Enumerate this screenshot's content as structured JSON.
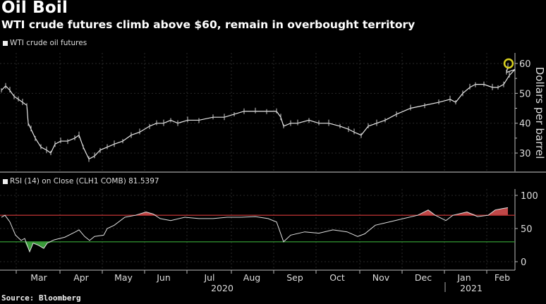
{
  "title": "Oil Boil",
  "subtitle": "WTI crude futures climb above $60, remain in overbought territory",
  "source": "Source: Bloomberg",
  "chart_data": [
    {
      "type": "line",
      "legend": "WTI crude oil futures",
      "ylabel": "Dollars per barrel",
      "ylim": [
        24,
        64
      ],
      "yticks": [
        30,
        40,
        50,
        60
      ],
      "x_unit": "days since 2020-02-18",
      "highlight_last_point": true,
      "colors": {
        "line": "#e8e8e8",
        "highlight": "#d8d020"
      },
      "points": [
        [
          0,
          51
        ],
        [
          3,
          52.5
        ],
        [
          6,
          51
        ],
        [
          9,
          49
        ],
        [
          12,
          48
        ],
        [
          15,
          47
        ],
        [
          18,
          46
        ],
        [
          19,
          40
        ],
        [
          21,
          38
        ],
        [
          24,
          35
        ],
        [
          28,
          32
        ],
        [
          32,
          31
        ],
        [
          35,
          30
        ],
        [
          38,
          33
        ],
        [
          42,
          34
        ],
        [
          47,
          34
        ],
        [
          52,
          35
        ],
        [
          55,
          36
        ],
        [
          58,
          32
        ],
        [
          62,
          28
        ],
        [
          66,
          29
        ],
        [
          70,
          31
        ],
        [
          75,
          32
        ],
        [
          80,
          33
        ],
        [
          86,
          34
        ],
        [
          92,
          36
        ],
        [
          98,
          37
        ],
        [
          105,
          39
        ],
        [
          110,
          40
        ],
        [
          115,
          40
        ],
        [
          120,
          41
        ],
        [
          125,
          40
        ],
        [
          132,
          41
        ],
        [
          140,
          41
        ],
        [
          150,
          42
        ],
        [
          158,
          42
        ],
        [
          165,
          43
        ],
        [
          172,
          44
        ],
        [
          180,
          44
        ],
        [
          188,
          44
        ],
        [
          195,
          44
        ],
        [
          198,
          42
        ],
        [
          200,
          39
        ],
        [
          205,
          40
        ],
        [
          210,
          40
        ],
        [
          218,
          41
        ],
        [
          225,
          40
        ],
        [
          232,
          40
        ],
        [
          240,
          39
        ],
        [
          246,
          38
        ],
        [
          250,
          37
        ],
        [
          255,
          36
        ],
        [
          260,
          39
        ],
        [
          266,
          40
        ],
        [
          272,
          41
        ],
        [
          280,
          43
        ],
        [
          290,
          45
        ],
        [
          300,
          46
        ],
        [
          310,
          47
        ],
        [
          318,
          48
        ],
        [
          322,
          47
        ],
        [
          327,
          50
        ],
        [
          332,
          52
        ],
        [
          336,
          53
        ],
        [
          342,
          53
        ],
        [
          348,
          52
        ],
        [
          352,
          52
        ],
        [
          356,
          53
        ],
        [
          360,
          56
        ],
        [
          364,
          58
        ],
        [
          358,
          57
        ],
        [
          359,
          59
        ]
      ]
    },
    {
      "type": "line",
      "legend": "RSI (14)  on Close (CLH1 COMB) 81.5397",
      "ylim": [
        -12,
        110
      ],
      "yticks": [
        0,
        50,
        100
      ],
      "overbought": 70,
      "oversold": 30,
      "x_unit": "days since 2020-02-18",
      "colors": {
        "line": "#e0e0e0",
        "overbought": "#b03030",
        "oversold": "#2e8b2e",
        "fill_over": "#c04848",
        "fill_under": "#3a9a3a"
      },
      "points": [
        [
          0,
          67
        ],
        [
          2.5,
          70
        ],
        [
          6,
          60
        ],
        [
          10,
          40
        ],
        [
          14,
          32
        ],
        [
          16.5,
          35
        ],
        [
          20,
          15
        ],
        [
          22.5,
          28
        ],
        [
          26,
          25
        ],
        [
          30,
          20
        ],
        [
          32.5,
          28
        ],
        [
          37.5,
          33
        ],
        [
          45,
          37
        ],
        [
          52.5,
          45
        ],
        [
          55,
          48
        ],
        [
          59,
          38
        ],
        [
          62.5,
          32
        ],
        [
          66,
          38
        ],
        [
          72.5,
          40
        ],
        [
          75,
          50
        ],
        [
          80,
          55
        ],
        [
          87.5,
          67
        ],
        [
          95,
          70
        ],
        [
          102.5,
          75
        ],
        [
          107.5,
          72
        ],
        [
          112.5,
          65
        ],
        [
          120,
          62
        ],
        [
          130,
          67
        ],
        [
          140,
          65
        ],
        [
          150,
          65
        ],
        [
          160,
          67
        ],
        [
          170,
          67
        ],
        [
          180,
          68
        ],
        [
          189,
          65
        ],
        [
          195,
          60
        ],
        [
          197.5,
          45
        ],
        [
          200,
          30
        ],
        [
          205,
          40
        ],
        [
          215,
          45
        ],
        [
          225,
          43
        ],
        [
          235,
          48
        ],
        [
          245,
          45
        ],
        [
          252.5,
          38
        ],
        [
          257.5,
          42
        ],
        [
          265,
          55
        ],
        [
          275,
          60
        ],
        [
          285,
          65
        ],
        [
          295,
          70
        ],
        [
          302.5,
          78
        ],
        [
          307.5,
          70
        ],
        [
          315,
          62
        ],
        [
          320,
          70
        ],
        [
          330,
          75
        ],
        [
          337.5,
          68
        ],
        [
          345,
          70
        ],
        [
          350,
          78
        ],
        [
          355,
          80
        ],
        [
          359,
          81.5
        ]
      ]
    }
  ],
  "x_axis": {
    "months": [
      "Mar",
      "Apr",
      "May",
      "Jun",
      "Jul",
      "Aug",
      "Sep",
      "Oct",
      "Nov",
      "Dec",
      "Jan",
      "Feb"
    ],
    "years": [
      "2020",
      "2021"
    ]
  }
}
